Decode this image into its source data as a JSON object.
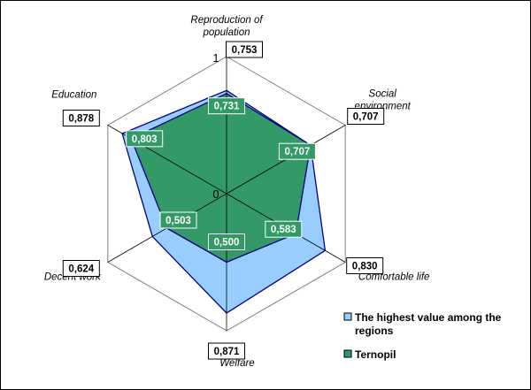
{
  "chart_data": {
    "type": "radar",
    "axes": [
      "Reproduction of population",
      "Social environment",
      "Comfortable life",
      "Welfare",
      "Decent work",
      "Education"
    ],
    "axis_label_lines": [
      [
        "Reproduction of",
        "population"
      ],
      [
        "Social",
        "environment"
      ],
      [
        "Comfortable life"
      ],
      [
        "Welfare"
      ],
      [
        "Decent work"
      ],
      [
        "Education"
      ]
    ],
    "rlim": [
      0,
      1
    ],
    "tick_labels": [
      "0",
      "1"
    ],
    "grid": true,
    "grid_levels": [
      0.2,
      0.4,
      0.6,
      0.8,
      1.0
    ],
    "legend_position": "bottom-right",
    "series": [
      {
        "name": "The highest value among the regions",
        "name_lines": [
          "The highest value among the",
          "regions"
        ],
        "values": [
          0.753,
          0.707,
          0.83,
          0.871,
          0.624,
          0.878
        ],
        "value_labels": [
          "0,753",
          "0,707",
          "0,830",
          "0,871",
          "0,624",
          "0,878"
        ],
        "color": "#99CCFF"
      },
      {
        "name": "Ternopil",
        "name_lines": [
          "Ternopil"
        ],
        "values": [
          0.731,
          0.707,
          0.583,
          0.5,
          0.503,
          0.803
        ],
        "value_labels": [
          "0,731",
          "0,707",
          "0,583",
          "0,500",
          "0,503",
          "0,803"
        ],
        "color": "#339966"
      }
    ]
  }
}
